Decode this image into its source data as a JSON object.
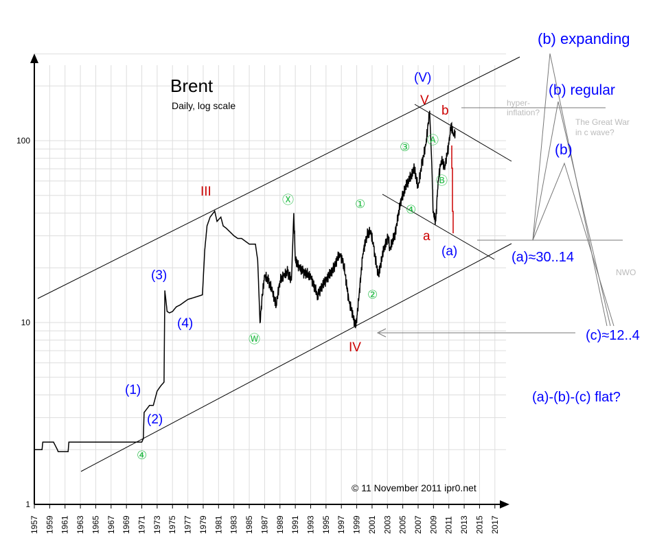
{
  "chart_data": {
    "type": "line",
    "title": "Brent",
    "subtitle": "Daily, log scale",
    "xlabel": "",
    "ylabel": "",
    "yscale": "log",
    "ylim": [
      1,
      300
    ],
    "xlim": [
      1957,
      2018
    ],
    "grid": true,
    "y_ticks": [
      "1",
      "10",
      "100"
    ],
    "x_ticks": [
      "1957",
      "1959",
      "1961",
      "1963",
      "1965",
      "1967",
      "1969",
      "1971",
      "1973",
      "1975",
      "1977",
      "1979",
      "1981",
      "1983",
      "1985",
      "1987",
      "1989",
      "1991",
      "1993",
      "1995",
      "1997",
      "1999",
      "2001",
      "2003",
      "2005",
      "2007",
      "2009",
      "2011",
      "2013",
      "2015",
      "2017"
    ],
    "series": [
      {
        "name": "Brent",
        "color": "#000000",
        "x": [
          1957,
          1958,
          1958.1,
          1959.5,
          1960,
          1960.1,
          1961.4,
          1961.5,
          1971,
          1971.2,
          1971.3,
          1972,
          1972.5,
          1973,
          1973.5,
          1973.9,
          1974,
          1974.3,
          1974.6,
          1975,
          1975.5,
          1976,
          1977,
          1978,
          1978.9,
          1979.2,
          1979.5,
          1979.9,
          1980.5,
          1980.8,
          1981.3,
          1981.6,
          1982,
          1983,
          1983.5,
          1984,
          1985,
          1985.8,
          1986.1,
          1986.4,
          1986.7,
          1987,
          1987.5,
          1988,
          1988.5,
          1989,
          1989.5,
          1990,
          1990.5,
          1990.8,
          1991,
          1991.5,
          1992,
          1993,
          1993.9,
          1994.5,
          1995,
          1996,
          1996.8,
          1997.3,
          1998,
          1998.9,
          1999.3,
          1999.8,
          2000.3,
          2000.8,
          2001.2,
          2001.8,
          2002.5,
          2003.1,
          2003.3,
          2004,
          2004.8,
          2005.7,
          2006.5,
          2007,
          2007.5,
          2008,
          2008.5,
          2008.8,
          2008.95,
          2009.3,
          2009.6,
          2010,
          2010.5,
          2011,
          2011.3,
          2011.6,
          2011.85
        ],
        "y": [
          2.0,
          2.0,
          2.2,
          2.2,
          2.0,
          1.95,
          1.95,
          2.2,
          2.2,
          2.3,
          3.2,
          3.5,
          3.5,
          4.2,
          4.5,
          4.7,
          15,
          11.5,
          11.3,
          11.5,
          12.2,
          12.5,
          13.4,
          13.8,
          14.2,
          25,
          34,
          38,
          41,
          36,
          38,
          34,
          33,
          30,
          29,
          29,
          27,
          27,
          22,
          10,
          14,
          18,
          17,
          15,
          12.5,
          17,
          18,
          19,
          17,
          40,
          22,
          20,
          19,
          18,
          14,
          16,
          17,
          20,
          24,
          21,
          13,
          9.5,
          14,
          24,
          30,
          32,
          26,
          18,
          25,
          30,
          25,
          31,
          48,
          60,
          70,
          55,
          75,
          95,
          146,
          70,
          40,
          36,
          60,
          78,
          72,
          95,
          124,
          108,
          112
        ]
      }
    ],
    "annotations": {
      "wave_III": "III",
      "wave_IV": "IV",
      "wave_V_red": "V",
      "wave_V_blue": "(V)",
      "b_red": "b",
      "a_red": "a",
      "a_blue": "(a)",
      "w1": "(1)",
      "w2": "(2)",
      "w3": "(3)",
      "w4": "(4)",
      "c4_low": "④",
      "cW": "Ⓦ",
      "cX": "Ⓧ",
      "c1": "①",
      "c2": "②",
      "c3": "③",
      "c4": "④",
      "cA": "Ⓐ",
      "cB": "Ⓑ",
      "b_expanding": "(b) expanding",
      "b_regular": "(b) regular",
      "b_plain": "(b)",
      "a_target": "(a)≈30..14",
      "c_target": "(c)≈12..4",
      "flat": "(a)-(b)-(c) flat?",
      "hyper1": "hyper-",
      "hyper2": "inflation?",
      "war1": "The Great War",
      "war2": "in c wave?",
      "nwo": "NWO",
      "copyright": "© 11 November  2011 ipr0.net"
    },
    "colors": {
      "wave_blue": "#0000ff",
      "wave_red": "#cc0000",
      "minor_green": "#22bb44",
      "note_grey": "#bbbbbb",
      "scenario_lines": "#777777",
      "forecast_red": "#cc0000"
    }
  }
}
